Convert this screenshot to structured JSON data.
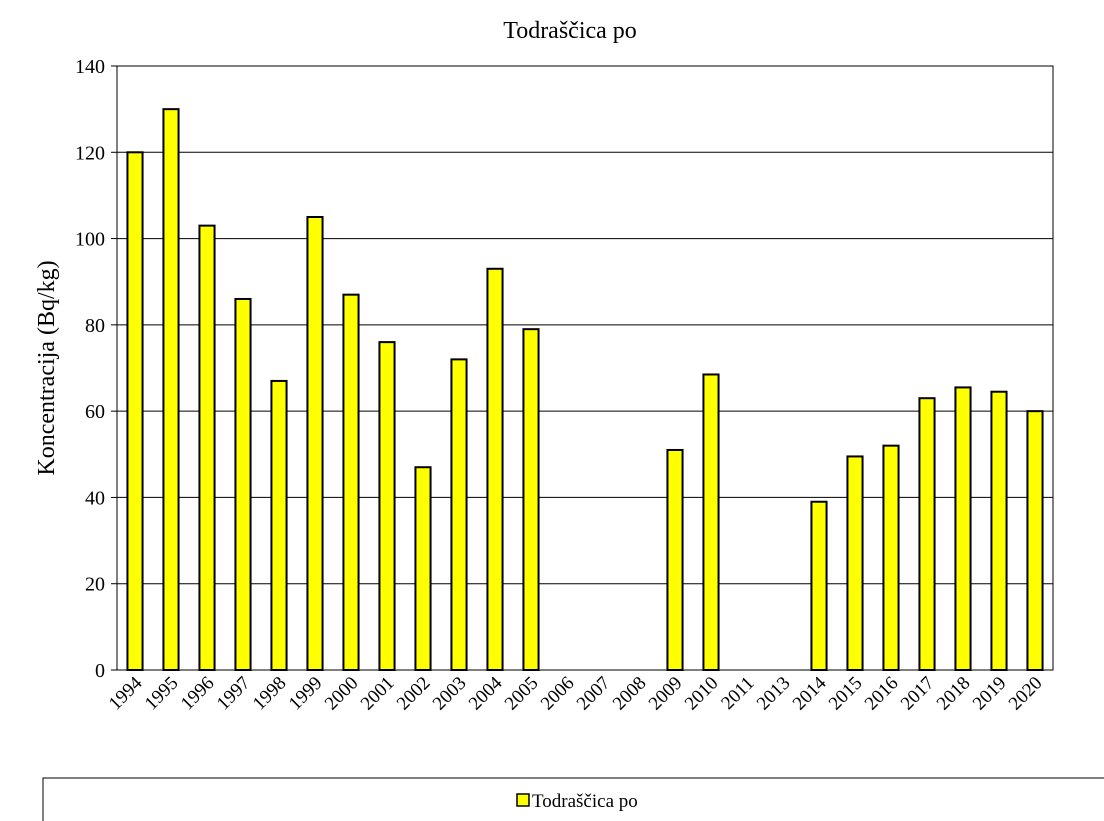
{
  "chart_data": {
    "type": "bar",
    "title": "Todraščica po",
    "y_label": "Koncentracija (Bq/kg)",
    "categories": [
      "1994",
      "1995",
      "1996",
      "1997",
      "1998",
      "1999",
      "2000",
      "2001",
      "2002",
      "2003",
      "2004",
      "2005",
      "2006",
      "2007",
      "2008",
      "2009",
      "2010",
      "2011",
      "2013",
      "2014",
      "2015",
      "2016",
      "2017",
      "2018",
      "2019",
      "2020"
    ],
    "series": [
      {
        "name": "Todraščica po",
        "color": "#ffff00",
        "values": [
          120,
          130,
          103,
          86,
          67,
          105,
          87,
          76,
          47,
          72,
          93,
          79,
          null,
          null,
          null,
          51,
          68.5,
          null,
          null,
          39,
          49.5,
          52,
          63,
          65.5,
          64.5,
          60
        ]
      }
    ],
    "ylim": [
      0,
      140
    ],
    "yticks": [
      0,
      20,
      40,
      60,
      80,
      100,
      120,
      140
    ],
    "grid": true,
    "legend": "bottom"
  }
}
